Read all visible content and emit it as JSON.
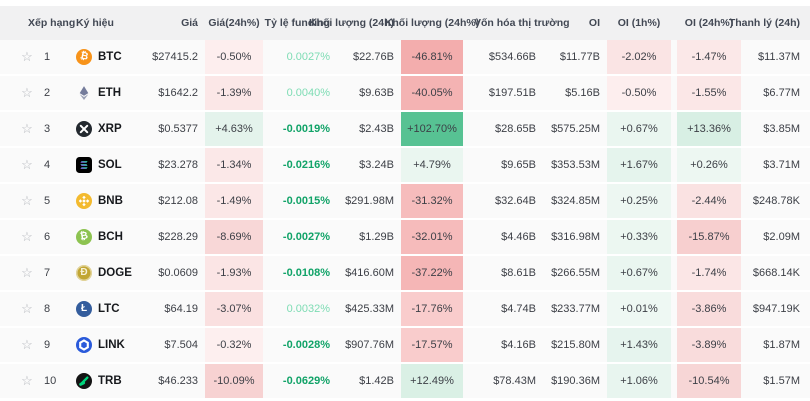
{
  "colors": {
    "header_bg": "#f1f1f2",
    "row_bg": "#fafafa",
    "header_text": "#424854",
    "value_text": "#3c3f46",
    "funding_positive": "#7edcb4",
    "funding_negative": "#11a368",
    "star": "#b4b7bd"
  },
  "table": {
    "star_glyph": "☆",
    "columns": [
      {
        "key": "rank",
        "label": "Xếp hạng"
      },
      {
        "key": "symbol",
        "label": "Ký hiệu"
      },
      {
        "key": "price",
        "label": "Giá"
      },
      {
        "key": "price_change_24h",
        "label": "Giá(24h%)"
      },
      {
        "key": "funding_rate",
        "label": "Tỷ lệ funding"
      },
      {
        "key": "volume_24h",
        "label": "Khối lượng (24h)"
      },
      {
        "key": "volume_change_24h",
        "label": "Khối lượng (24h%)"
      },
      {
        "key": "market_cap",
        "label": "Vốn hóa thị trường"
      },
      {
        "key": "oi",
        "label": "OI"
      },
      {
        "key": "oi_1h",
        "label": "OI (1h%)"
      },
      {
        "key": "oi_24h",
        "label": "OI (24h%)"
      },
      {
        "key": "liquidation_24h",
        "label": "Thanh lý (24h)"
      }
    ],
    "rows": [
      {
        "rank": "1",
        "symbol": "BTC",
        "price": "$27415.2",
        "price_change": "-0.50%",
        "price_change_bg": "#fdeeee",
        "funding": "0.0027%",
        "volume": "$22.76B",
        "volume_change": "-46.81%",
        "volume_change_bg": "#f3adad",
        "market_cap": "$534.66B",
        "oi": "$11.77B",
        "oi_1h": "-2.02%",
        "oi_1h_bg": "#fae4e4",
        "oi_24h": "-1.47%",
        "oi_24h_bg": "#fbe8e8",
        "liquidation": "$11.37M"
      },
      {
        "rank": "2",
        "symbol": "ETH",
        "price": "$1642.2",
        "price_change": "-1.39%",
        "price_change_bg": "#fbe7e7",
        "funding": "0.0040%",
        "volume": "$9.63B",
        "volume_change": "-40.05%",
        "volume_change_bg": "#f4b3b3",
        "market_cap": "$197.51B",
        "oi": "$5.16B",
        "oi_1h": "-0.50%",
        "oi_1h_bg": "#fdeeee",
        "oi_24h": "-1.55%",
        "oi_24h_bg": "#fbe7e7",
        "liquidation": "$6.77M"
      },
      {
        "rank": "3",
        "symbol": "XRP",
        "price": "$0.5377",
        "price_change": "+4.63%",
        "price_change_bg": "#e4f3ec",
        "funding": "-0.0019%",
        "volume": "$2.43B",
        "volume_change": "+102.70%",
        "volume_change_bg": "#57c293",
        "market_cap": "$28.65B",
        "oi": "$575.25M",
        "oi_1h": "+0.67%",
        "oi_1h_bg": "#eaf6f0",
        "oi_24h": "+13.36%",
        "oi_24h_bg": "#d8efe4",
        "liquidation": "$3.85M"
      },
      {
        "rank": "4",
        "symbol": "SOL",
        "price": "$23.278",
        "price_change": "-1.34%",
        "price_change_bg": "#fbe8e8",
        "funding": "-0.0216%",
        "volume": "$3.24B",
        "volume_change": "+4.79%",
        "volume_change_bg": "#eaf6f0",
        "market_cap": "$9.65B",
        "oi": "$353.53M",
        "oi_1h": "+1.67%",
        "oi_1h_bg": "#e5f4ed",
        "oi_24h": "+0.26%",
        "oi_24h_bg": "#edf7f2",
        "liquidation": "$3.71M"
      },
      {
        "rank": "5",
        "symbol": "BNB",
        "price": "$212.08",
        "price_change": "-1.49%",
        "price_change_bg": "#fbe7e7",
        "funding": "-0.0015%",
        "volume": "$291.98M",
        "volume_change": "-31.32%",
        "volume_change_bg": "#f6bcbc",
        "market_cap": "$32.64B",
        "oi": "$324.85M",
        "oi_1h": "+0.25%",
        "oi_1h_bg": "#edf7f2",
        "oi_24h": "-2.44%",
        "oi_24h_bg": "#fae2e2",
        "liquidation": "$248.78K"
      },
      {
        "rank": "6",
        "symbol": "BCH",
        "price": "$228.29",
        "price_change": "-8.69%",
        "price_change_bg": "#f8d7d7",
        "funding": "-0.0027%",
        "volume": "$1.29B",
        "volume_change": "-32.01%",
        "volume_change_bg": "#f6bbbb",
        "market_cap": "$4.46B",
        "oi": "$316.98M",
        "oi_1h": "+0.33%",
        "oi_1h_bg": "#ecf7f1",
        "oi_24h": "-15.87%",
        "oi_24h_bg": "#f7cfcf",
        "liquidation": "$2.09M"
      },
      {
        "rank": "7",
        "symbol": "DOGE",
        "price": "$0.0609",
        "price_change": "-1.93%",
        "price_change_bg": "#fbe5e5",
        "funding": "-0.0108%",
        "volume": "$416.60M",
        "volume_change": "-37.22%",
        "volume_change_bg": "#f5b6b6",
        "market_cap": "$8.61B",
        "oi": "$266.55M",
        "oi_1h": "+0.67%",
        "oi_1h_bg": "#eaf6f0",
        "oi_24h": "-1.74%",
        "oi_24h_bg": "#fbe6e6",
        "liquidation": "$668.14K"
      },
      {
        "rank": "8",
        "symbol": "LTC",
        "price": "$64.19",
        "price_change": "-3.07%",
        "price_change_bg": "#fae0e0",
        "funding": "0.0032%",
        "volume": "$425.33M",
        "volume_change": "-17.76%",
        "volume_change_bg": "#f9cccc",
        "market_cap": "$4.74B",
        "oi": "$233.77M",
        "oi_1h": "+0.01%",
        "oi_1h_bg": "#eef8f3",
        "oi_24h": "-3.86%",
        "oi_24h_bg": "#f9dcdc",
        "liquidation": "$947.19K"
      },
      {
        "rank": "9",
        "symbol": "LINK",
        "price": "$7.504",
        "price_change": "-0.32%",
        "price_change_bg": "#fdefef",
        "funding": "-0.0028%",
        "volume": "$907.76M",
        "volume_change": "-17.57%",
        "volume_change_bg": "#f9cccc",
        "market_cap": "$4.16B",
        "oi": "$215.80M",
        "oi_1h": "+1.43%",
        "oi_1h_bg": "#e6f4ee",
        "oi_24h": "-3.89%",
        "oi_24h_bg": "#f9dcdc",
        "liquidation": "$1.87M"
      },
      {
        "rank": "10",
        "symbol": "TRB",
        "price": "$46.233",
        "price_change": "-10.09%",
        "price_change_bg": "#f7d2d2",
        "funding": "-0.0629%",
        "volume": "$1.42B",
        "volume_change": "+12.49%",
        "volume_change_bg": "#daf0e5",
        "market_cap": "$78.43M",
        "oi": "$190.36M",
        "oi_1h": "+1.06%",
        "oi_1h_bg": "#e8f5ef",
        "oi_24h": "-10.54%",
        "oi_24h_bg": "#f7d6d6",
        "liquidation": "$1.57M"
      }
    ]
  },
  "icons": {
    "BTC": {
      "name": "btc-icon",
      "type": "glyph",
      "bg": "#f7931a",
      "fg": "#ffffff",
      "glyph": "₿",
      "rotate": 12
    },
    "ETH": {
      "name": "eth-icon",
      "type": "eth",
      "fg": "#687192"
    },
    "XRP": {
      "name": "xrp-icon",
      "type": "xrp",
      "bg": "#23292f",
      "fg": "#ffffff"
    },
    "SOL": {
      "name": "sol-icon",
      "type": "sol",
      "bg": "#000000",
      "grad1": "#9945ff",
      "grad2": "#14f195"
    },
    "BNB": {
      "name": "bnb-icon",
      "type": "bnb",
      "bg": "#f3ba2f",
      "fg": "#ffffff"
    },
    "BCH": {
      "name": "bch-icon",
      "type": "glyph",
      "bg": "#8dc351",
      "fg": "#ffffff",
      "glyph": "₿",
      "rotate": -10
    },
    "DOGE": {
      "name": "doge-icon",
      "type": "glyph",
      "bg": "#c2a633",
      "fg": "#f7f1d8",
      "glyph": "Ð",
      "ring": true
    },
    "LTC": {
      "name": "ltc-icon",
      "type": "glyph",
      "bg": "#345d9d",
      "fg": "#ffffff",
      "glyph": "Ł"
    },
    "LINK": {
      "name": "link-icon",
      "type": "link",
      "bg": "#2a5ada",
      "fg": "#ffffff"
    },
    "TRB": {
      "name": "trb-icon",
      "type": "trb",
      "bg": "#141414",
      "fg": "#00d67d"
    }
  }
}
